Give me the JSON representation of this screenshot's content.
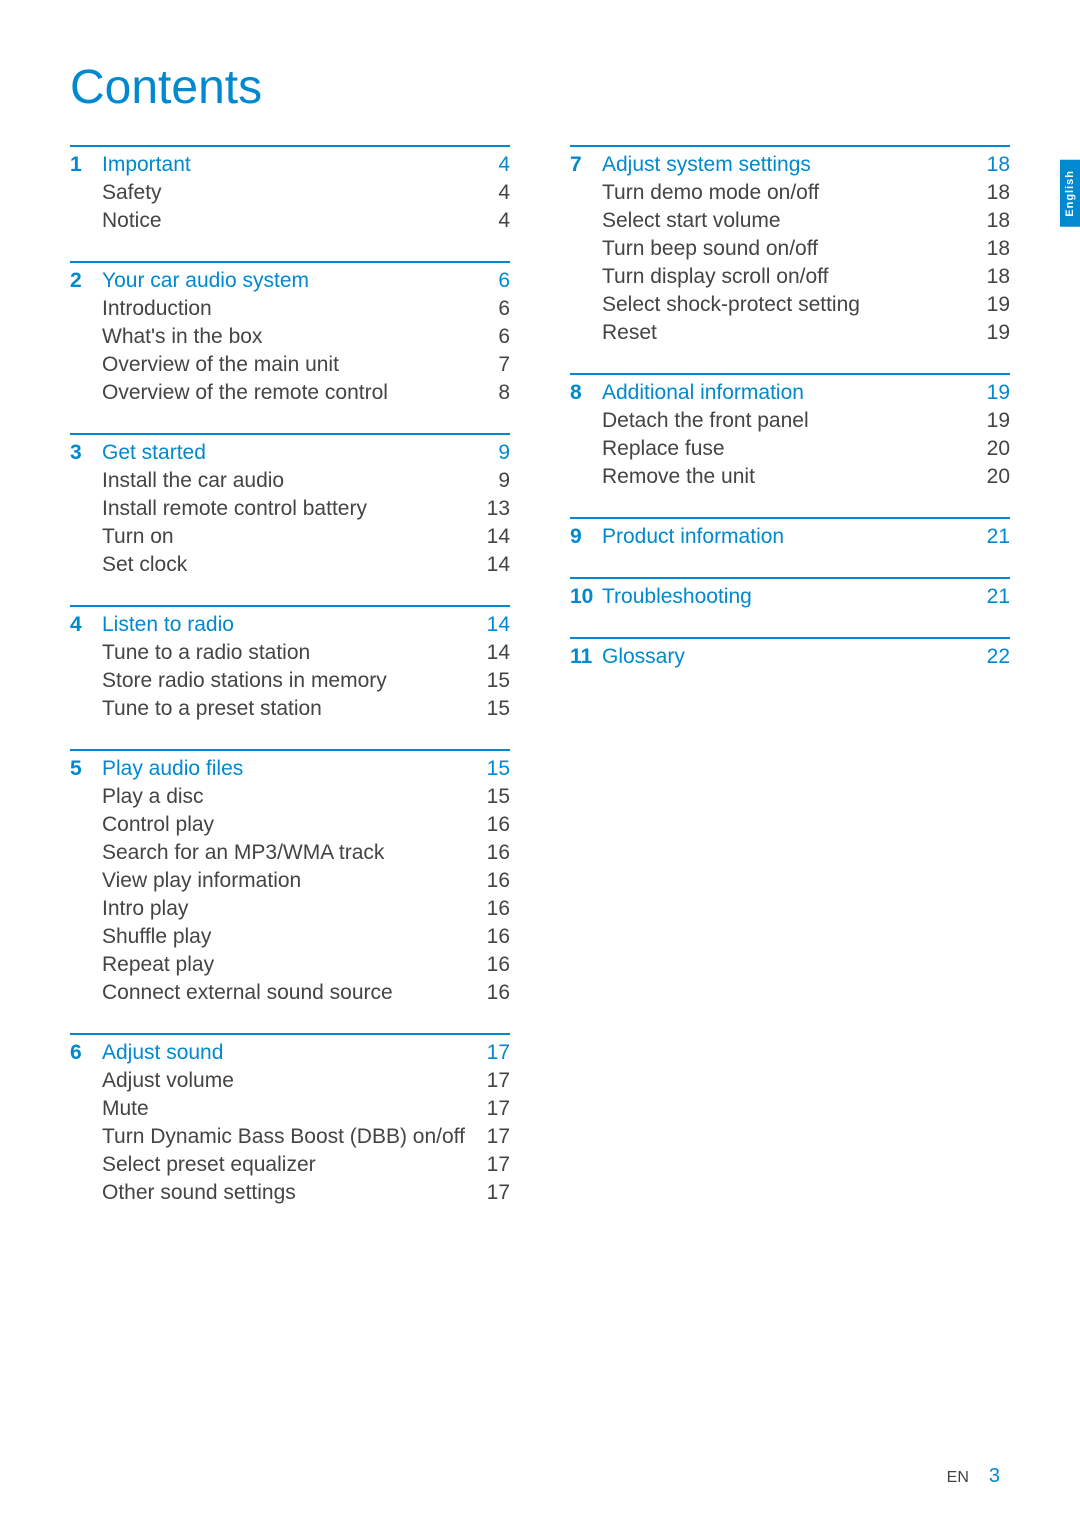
{
  "title": "Contents",
  "language_tab": "English",
  "footer": {
    "lang": "EN",
    "page": "3"
  },
  "colors": {
    "accent": "#0089cf",
    "body_text": "#444444",
    "bg": "#ffffff"
  },
  "sections_left": [
    {
      "num": "1",
      "title": "Important",
      "page": "4",
      "subs": [
        {
          "title": "Safety",
          "page": "4"
        },
        {
          "title": "Notice",
          "page": "4"
        }
      ]
    },
    {
      "num": "2",
      "title": "Your car audio system",
      "page": "6",
      "subs": [
        {
          "title": "Introduction",
          "page": "6"
        },
        {
          "title": "What's in the box",
          "page": "6"
        },
        {
          "title": "Overview of the main unit",
          "page": "7"
        },
        {
          "title": "Overview of the remote control",
          "page": "8"
        }
      ]
    },
    {
      "num": "3",
      "title": "Get started",
      "page": "9",
      "subs": [
        {
          "title": "Install the car audio",
          "page": "9"
        },
        {
          "title": "Install remote control battery",
          "page": "13"
        },
        {
          "title": "Turn on",
          "page": "14"
        },
        {
          "title": "Set clock",
          "page": "14"
        }
      ]
    },
    {
      "num": "4",
      "title": "Listen to radio",
      "page": "14",
      "subs": [
        {
          "title": "Tune to a radio station",
          "page": "14"
        },
        {
          "title": "Store radio stations in memory",
          "page": "15"
        },
        {
          "title": "Tune to a preset station",
          "page": "15"
        }
      ]
    },
    {
      "num": "5",
      "title": "Play audio files",
      "page": "15",
      "subs": [
        {
          "title": "Play a disc",
          "page": "15"
        },
        {
          "title": "Control play",
          "page": "16"
        },
        {
          "title": "Search for an MP3/WMA track",
          "page": "16"
        },
        {
          "title": "View play information",
          "page": "16"
        },
        {
          "title": "Intro play",
          "page": "16"
        },
        {
          "title": "Shuffle play",
          "page": "16"
        },
        {
          "title": "Repeat play",
          "page": "16"
        },
        {
          "title": "Connect external sound source",
          "page": "16"
        }
      ]
    },
    {
      "num": "6",
      "title": "Adjust sound",
      "page": "17",
      "subs": [
        {
          "title": "Adjust volume",
          "page": "17"
        },
        {
          "title": "Mute",
          "page": "17"
        },
        {
          "title": "Turn Dynamic Bass Boost (DBB) on/off",
          "page": "17"
        },
        {
          "title": "Select preset equalizer",
          "page": "17"
        },
        {
          "title": "Other sound settings",
          "page": "17"
        }
      ]
    }
  ],
  "sections_right": [
    {
      "num": "7",
      "title": "Adjust system settings",
      "page": "18",
      "subs": [
        {
          "title": "Turn demo mode on/off",
          "page": "18"
        },
        {
          "title": "Select start volume",
          "page": "18"
        },
        {
          "title": "Turn beep sound on/off",
          "page": "18"
        },
        {
          "title": "Turn display scroll on/off",
          "page": "18"
        },
        {
          "title": "Select shock-protect setting",
          "page": "19"
        },
        {
          "title": "Reset",
          "page": "19"
        }
      ]
    },
    {
      "num": "8",
      "title": "Additional information",
      "page": "19",
      "subs": [
        {
          "title": "Detach the front panel",
          "page": "19"
        },
        {
          "title": "Replace fuse",
          "page": "20"
        },
        {
          "title": "Remove the unit",
          "page": "20"
        }
      ]
    },
    {
      "num": "9",
      "title": "Product information",
      "page": "21",
      "subs": []
    },
    {
      "num": "10",
      "title": "Troubleshooting",
      "page": "21",
      "subs": []
    },
    {
      "num": "11",
      "title": "Glossary",
      "page": "22",
      "subs": []
    }
  ]
}
